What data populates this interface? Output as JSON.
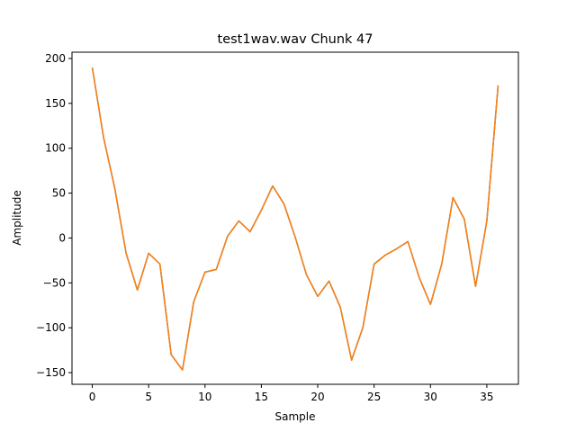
{
  "chart_data": {
    "type": "line",
    "title": "test1wav.wav Chunk 47",
    "xlabel": "Sample",
    "ylabel": "Amplitude",
    "xlim": [
      -1.8,
      37.8
    ],
    "ylim": [
      -163,
      207
    ],
    "xticks": [
      0,
      5,
      10,
      15,
      20,
      25,
      30,
      35
    ],
    "yticks": [
      -150,
      -100,
      -50,
      0,
      50,
      100,
      150,
      200
    ],
    "xtick_labels": [
      "0",
      "5",
      "10",
      "15",
      "20",
      "25",
      "30",
      "35"
    ],
    "ytick_labels": [
      "−150",
      "−100",
      "−50",
      "0",
      "50",
      "100",
      "150",
      "200"
    ],
    "grid": false,
    "series": [
      {
        "color": "#1f77b4",
        "x": [
          0,
          1,
          2,
          3,
          4,
          5,
          6,
          7,
          8,
          9,
          10,
          11,
          12,
          13,
          14,
          15,
          16,
          17,
          18,
          19,
          20,
          21,
          22,
          23,
          24,
          25,
          26,
          27,
          28,
          29,
          30,
          31,
          32,
          33,
          34,
          35,
          36
        ],
        "y": [
          190,
          112,
          55,
          -17,
          -58,
          -17,
          -29,
          -130,
          -147,
          -71,
          -38,
          -35,
          2,
          19,
          7,
          31,
          58,
          38,
          1,
          -41,
          -65,
          -48,
          -77,
          -136,
          -100,
          -29,
          -19,
          -12,
          -4,
          -44,
          -74,
          -29,
          45,
          21,
          -54,
          19,
          170
        ]
      },
      {
        "color": "#ff7f0e",
        "x": [
          0,
          1,
          2,
          3,
          4,
          5,
          6,
          7,
          8,
          9,
          10,
          11,
          12,
          13,
          14,
          15,
          16,
          17,
          18,
          19,
          20,
          21,
          22,
          23,
          24,
          25,
          26,
          27,
          28,
          29,
          30,
          31,
          32,
          33,
          34,
          35,
          36
        ],
        "y": [
          190,
          112,
          55,
          -17,
          -58,
          -17,
          -29,
          -130,
          -147,
          -71,
          -38,
          -35,
          2,
          19,
          7,
          31,
          58,
          38,
          1,
          -41,
          -65,
          -48,
          -77,
          -136,
          -100,
          -29,
          -19,
          -12,
          -4,
          -44,
          -74,
          -29,
          45,
          21,
          -54,
          19,
          170
        ]
      }
    ]
  }
}
